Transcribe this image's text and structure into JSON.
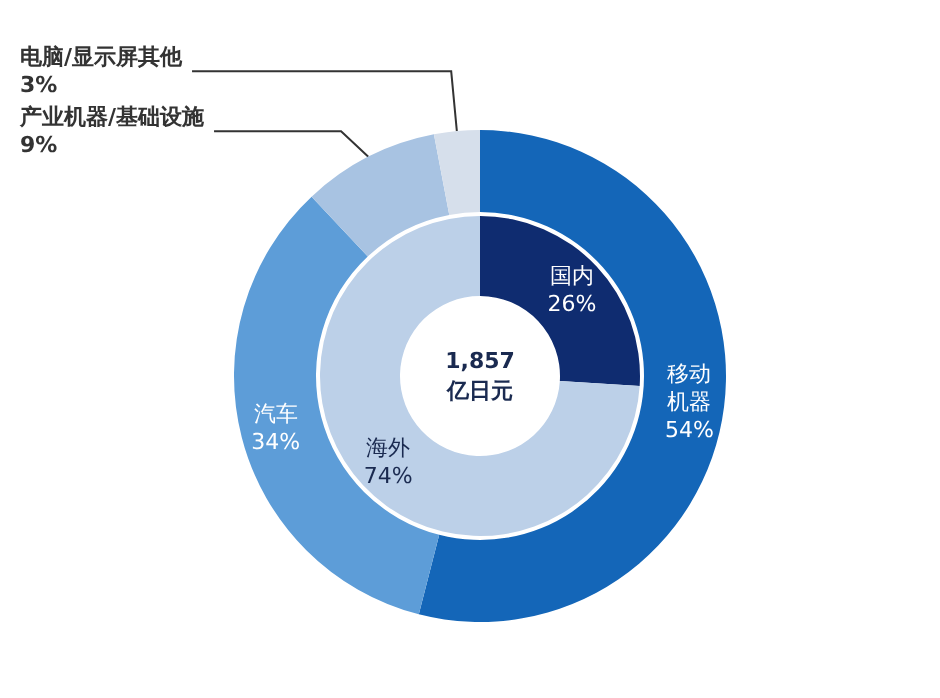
{
  "chart_data": [
    {
      "type": "donut",
      "categories": [
        "移动机器",
        "汽车",
        "产业机器/基础设施",
        "电脑/显示屏其他"
      ],
      "values": [
        54,
        34,
        9,
        3
      ],
      "value_labels": [
        "54%",
        "34%",
        "9%",
        "3%"
      ],
      "colors": [
        "#1466b8",
        "#5d9dd8",
        "#a8c3e2",
        "#d6dfeb"
      ]
    },
    {
      "type": "donut",
      "categories": [
        "国内",
        "海外"
      ],
      "values": [
        26,
        74
      ],
      "value_labels": [
        "26%",
        "74%"
      ],
      "colors": [
        "#0f2c70",
        "#bcd0e8"
      ],
      "annotations": [
        "1,857\n亿日元"
      ]
    }
  ]
}
